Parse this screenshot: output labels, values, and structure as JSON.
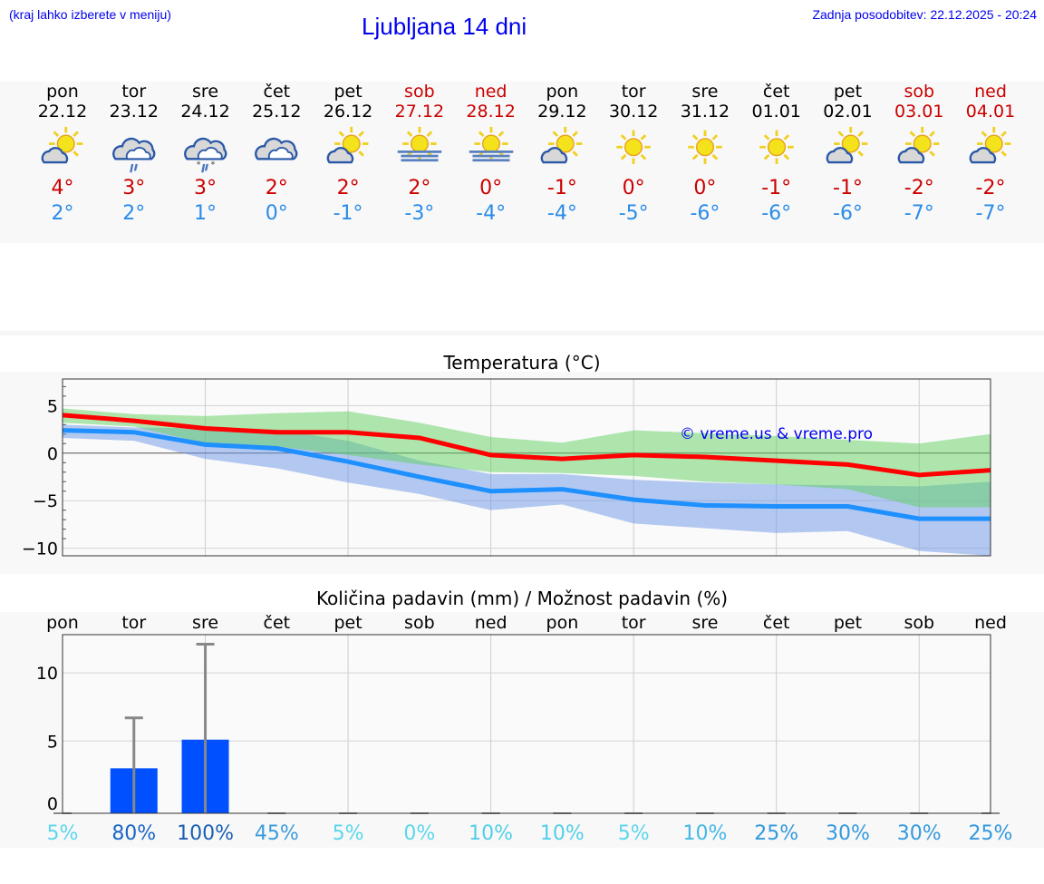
{
  "header": {
    "hint": "(kraj lahko izberete v meniju)",
    "title": "Ljubljana 14 dni",
    "updated": "Zadnja posodobitev: 22.12.2025 - 20:24"
  },
  "days": [
    {
      "name": "pon",
      "date": "22.12",
      "weekend": false,
      "icon": "partly-cloudy",
      "max": "4°",
      "min": "2°"
    },
    {
      "name": "tor",
      "date": "23.12",
      "weekend": false,
      "icon": "cloudy-rain",
      "max": "3°",
      "min": "2°"
    },
    {
      "name": "sre",
      "date": "24.12",
      "weekend": false,
      "icon": "cloudy-sleet",
      "max": "3°",
      "min": "1°"
    },
    {
      "name": "čet",
      "date": "25.12",
      "weekend": false,
      "icon": "cloudy",
      "max": "2°",
      "min": "0°"
    },
    {
      "name": "pet",
      "date": "26.12",
      "weekend": false,
      "icon": "partly-cloudy",
      "max": "2°",
      "min": "-1°"
    },
    {
      "name": "sob",
      "date": "27.12",
      "weekend": true,
      "icon": "sun-fog",
      "max": "2°",
      "min": "-3°"
    },
    {
      "name": "ned",
      "date": "28.12",
      "weekend": true,
      "icon": "sun-fog",
      "max": "0°",
      "min": "-4°"
    },
    {
      "name": "pon",
      "date": "29.12",
      "weekend": false,
      "icon": "partly-cloudy",
      "max": "-1°",
      "min": "-4°"
    },
    {
      "name": "tor",
      "date": "30.12",
      "weekend": false,
      "icon": "sunny",
      "max": "0°",
      "min": "-5°"
    },
    {
      "name": "sre",
      "date": "31.12",
      "weekend": false,
      "icon": "sunny",
      "max": "0°",
      "min": "-6°"
    },
    {
      "name": "čet",
      "date": "01.01",
      "weekend": false,
      "icon": "sunny",
      "max": "-1°",
      "min": "-6°"
    },
    {
      "name": "pet",
      "date": "02.01",
      "weekend": false,
      "icon": "partly-cloudy",
      "max": "-1°",
      "min": "-6°"
    },
    {
      "name": "sob",
      "date": "03.01",
      "weekend": true,
      "icon": "partly-cloudy",
      "max": "-2°",
      "min": "-7°"
    },
    {
      "name": "ned",
      "date": "04.01",
      "weekend": true,
      "icon": "partly-cloudy",
      "max": "-2°",
      "min": "-7°"
    }
  ],
  "chart_data": [
    {
      "type": "line",
      "title": "Temperatura (°C)",
      "ylim": [
        -10.8,
        7.8
      ],
      "yticks": [
        5,
        0,
        -5,
        -10
      ],
      "grid": true,
      "watermark": "© vreme.us & vreme.pro",
      "series": [
        {
          "role": "max",
          "color": "#ff0000",
          "values": [
            4.0,
            3.4,
            2.6,
            2.2,
            2.2,
            1.6,
            -0.2,
            -0.6,
            -0.2,
            -0.4,
            -0.8,
            -1.2,
            -2.3,
            -1.8
          ]
        },
        {
          "role": "min",
          "color": "#1e90ff",
          "values": [
            2.4,
            2.2,
            0.9,
            0.5,
            -0.9,
            -2.5,
            -4.0,
            -3.8,
            -4.9,
            -5.5,
            -5.6,
            -5.6,
            -6.9,
            -6.9
          ]
        }
      ],
      "bands": [
        {
          "role": "max-range",
          "color": "#a8e8a8",
          "upper": [
            4.7,
            4.1,
            3.9,
            4.2,
            4.4,
            3.2,
            1.7,
            1.1,
            2.4,
            2.1,
            1.8,
            1.4,
            1.0,
            2.0
          ],
          "lower": [
            3.2,
            2.8,
            1.0,
            0.7,
            -0.2,
            -1.2,
            -2.0,
            -2.1,
            -2.4,
            -3.0,
            -3.3,
            -3.8,
            -5.7,
            -5.7
          ]
        },
        {
          "role": "min-range",
          "color": "#a8c4f0",
          "upper": [
            3.0,
            2.7,
            2.6,
            2.5,
            1.3,
            -0.8,
            -2.2,
            -2.2,
            -2.8,
            -3.1,
            -3.3,
            -3.4,
            -3.5,
            -3.0
          ],
          "lower": [
            1.6,
            1.3,
            -0.6,
            -1.6,
            -3.1,
            -4.3,
            -6.0,
            -5.4,
            -7.4,
            -7.9,
            -8.4,
            -8.2,
            -10.3,
            -10.8
          ]
        }
      ]
    },
    {
      "type": "bar",
      "title": "Količina padavin (mm) / Možnost padavin (%)",
      "ylim": [
        -0.3,
        12.8
      ],
      "yticks": [
        10,
        5,
        0
      ],
      "grid": true,
      "categories": [
        "pon",
        "tor",
        "sre",
        "čet",
        "pet",
        "sob",
        "ned",
        "pon",
        "tor",
        "sre",
        "čet",
        "pet",
        "sob",
        "ned"
      ],
      "values": [
        0,
        3.0,
        5.1,
        0,
        0,
        0,
        0,
        0,
        0,
        0,
        0,
        0,
        0,
        0
      ],
      "error_max": [
        0,
        6.7,
        12.1,
        0,
        0,
        0,
        0,
        0,
        0,
        0,
        0,
        0,
        0,
        0
      ],
      "bar_color": "#0050ff",
      "probability": [
        "5%",
        "80%",
        "100%",
        "45%",
        "5%",
        "0%",
        "10%",
        "10%",
        "5%",
        "10%",
        "25%",
        "30%",
        "30%",
        "25%"
      ],
      "probability_colors": [
        "#5bd6ec",
        "#1a66c4",
        "#1a5fb4",
        "#3a9cdc",
        "#5bd6ec",
        "#5bd6ec",
        "#52cfe8",
        "#52cfe8",
        "#5bd6ec",
        "#44b8e4",
        "#3399dd",
        "#3399dd",
        "#3399dd",
        "#3399dd"
      ]
    }
  ]
}
